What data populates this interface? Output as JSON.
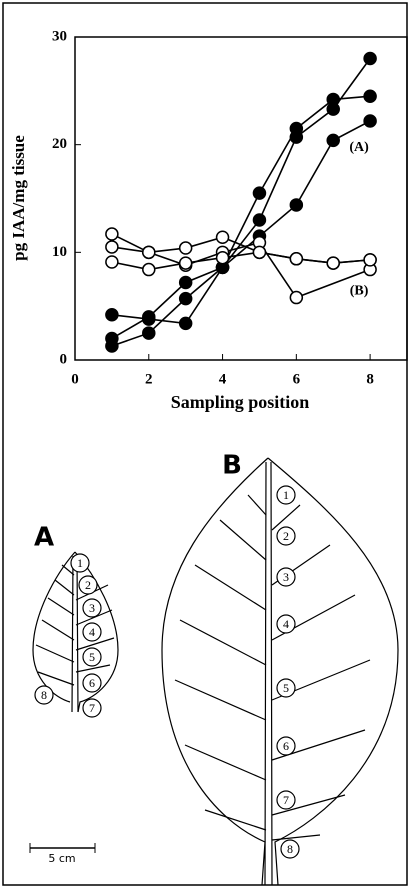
{
  "chart_data": {
    "type": "line",
    "ylabel": "pg IAA/mg tissue",
    "xlabel": "Sampling position",
    "xlim": [
      0,
      9
    ],
    "xticks": [
      0,
      2,
      4,
      6,
      8
    ],
    "ylim": [
      0,
      30
    ],
    "yticks": [
      0,
      10,
      20,
      30
    ],
    "annotations": [
      {
        "text": "(A)",
        "x": 7.7,
        "y": 19.7
      },
      {
        "text": "(B)",
        "x": 7.7,
        "y": 6.4
      }
    ],
    "series": [
      {
        "color": "#000000",
        "marker_fill": "#000000",
        "x": [
          1,
          2,
          3,
          4,
          5,
          6,
          7,
          8
        ],
        "values": [
          1.3,
          2.5,
          5.7,
          8.6,
          13.0,
          20.7,
          23.3,
          28.0
        ]
      },
      {
        "color": "#000000",
        "marker_fill": "#000000",
        "x": [
          1,
          2,
          3,
          4,
          5,
          6,
          7,
          8
        ],
        "values": [
          2.0,
          4.0,
          7.2,
          8.6,
          15.5,
          21.5,
          24.2,
          24.5
        ]
      },
      {
        "color": "#000000",
        "marker_fill": "#000000",
        "x": [
          1,
          2,
          3,
          4,
          5,
          6,
          7,
          8
        ],
        "values": [
          4.2,
          3.8,
          3.4,
          8.6,
          11.5,
          14.4,
          20.4,
          22.2
        ]
      },
      {
        "color": "#000000",
        "marker_fill": "#ffffff",
        "x": [
          1,
          2,
          3,
          4,
          5,
          6,
          7,
          8
        ],
        "values": [
          11.7,
          10.0,
          10.4,
          11.4,
          10.0,
          9.4,
          9.0,
          9.3
        ]
      },
      {
        "color": "#000000",
        "marker_fill": "#ffffff",
        "x": [
          1,
          2,
          3,
          4,
          5,
          6,
          8
        ],
        "values": [
          10.5,
          10.0,
          8.8,
          10.0,
          10.9,
          5.8,
          8.4
        ]
      },
      {
        "color": "#000000",
        "marker_fill": "#ffffff",
        "x": [
          1,
          2,
          3,
          4,
          5,
          6,
          7,
          8
        ],
        "values": [
          9.1,
          8.4,
          9.0,
          9.5,
          10.0,
          9.4,
          9.0,
          9.3
        ]
      }
    ]
  },
  "diagram": {
    "leaf_a": {
      "label": "A",
      "markers": [
        1,
        2,
        3,
        4,
        5,
        6,
        7,
        8
      ]
    },
    "leaf_b": {
      "label": "B",
      "markers": [
        1,
        2,
        3,
        4,
        5,
        6,
        7,
        8
      ]
    },
    "scale_label": "5 cm"
  }
}
